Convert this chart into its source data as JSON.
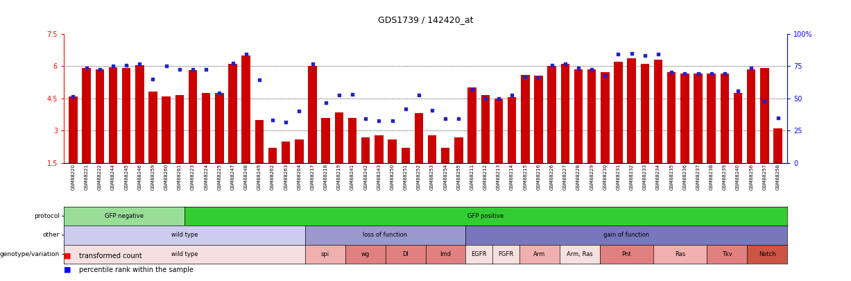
{
  "title": "GDS1739 / 142420_at",
  "samples": [
    "GSM88220",
    "GSM88221",
    "GSM88222",
    "GSM88244",
    "GSM88245",
    "GSM88246",
    "GSM88259",
    "GSM88260",
    "GSM88261",
    "GSM88223",
    "GSM88224",
    "GSM88225",
    "GSM88247",
    "GSM88248",
    "GSM88249",
    "GSM88262",
    "GSM88263",
    "GSM88264",
    "GSM88217",
    "GSM88218",
    "GSM88219",
    "GSM88241",
    "GSM88242",
    "GSM88243",
    "GSM88250",
    "GSM88251",
    "GSM88252",
    "GSM88253",
    "GSM88254",
    "GSM88255",
    "GSM88211",
    "GSM88212",
    "GSM88213",
    "GSM88214",
    "GSM88215",
    "GSM88216",
    "GSM88226",
    "GSM88227",
    "GSM88228",
    "GSM88229",
    "GSM88230",
    "GSM88231",
    "GSM88232",
    "GSM88233",
    "GSM88234",
    "GSM88235",
    "GSM88236",
    "GSM88237",
    "GSM88238",
    "GSM88239",
    "GSM88240",
    "GSM88256",
    "GSM88257",
    "GSM88258"
  ],
  "bar_values": [
    4.6,
    5.9,
    5.85,
    5.95,
    5.9,
    6.05,
    4.8,
    4.6,
    4.65,
    5.8,
    4.75,
    4.75,
    6.1,
    6.5,
    3.5,
    2.2,
    2.5,
    2.6,
    6.0,
    3.6,
    3.85,
    3.6,
    2.7,
    2.8,
    2.6,
    2.2,
    3.8,
    2.8,
    2.2,
    2.7,
    5.0,
    4.65,
    4.5,
    4.55,
    5.6,
    5.55,
    6.0,
    6.1,
    5.85,
    5.85,
    5.7,
    6.2,
    6.35,
    6.1,
    6.3,
    5.7,
    5.65,
    5.65,
    5.65,
    5.65,
    4.75,
    5.85,
    5.9,
    3.1
  ],
  "dot_values": [
    4.6,
    5.9,
    5.85,
    6.0,
    6.05,
    6.1,
    5.4,
    6.0,
    5.85,
    5.85,
    5.85,
    4.75,
    6.15,
    6.55,
    5.35,
    3.5,
    3.4,
    3.9,
    6.1,
    4.3,
    4.65,
    4.7,
    3.55,
    3.45,
    3.45,
    4.0,
    4.65,
    3.95,
    3.55,
    3.55,
    4.9,
    4.5,
    4.5,
    4.65,
    5.5,
    5.45,
    6.05,
    6.1,
    5.9,
    5.85,
    5.55,
    6.55,
    6.6,
    6.5,
    6.55,
    5.7,
    5.65,
    5.65,
    5.65,
    5.65,
    4.85,
    5.9,
    4.35,
    3.6
  ],
  "ylim": [
    1.5,
    7.5
  ],
  "yticks": [
    1.5,
    3.0,
    4.5,
    6.0,
    7.5
  ],
  "ytick_labels": [
    "1.5",
    "3",
    "4.5",
    "6",
    "7.5"
  ],
  "grid_lines": [
    3.0,
    4.5,
    6.0
  ],
  "right_ytick_labels": [
    "0",
    "25",
    "50",
    "75",
    "100%"
  ],
  "right_ytick_vals": [
    0,
    25,
    50,
    75,
    100
  ],
  "bar_color": "#cc0000",
  "dot_color": "#2222cc",
  "protocol_groups": [
    {
      "label": "GFP negative",
      "start": 0,
      "end": 8,
      "color": "#99dd99"
    },
    {
      "label": "GFP positive",
      "start": 9,
      "end": 53,
      "color": "#33cc33"
    }
  ],
  "other_groups": [
    {
      "label": "wild type",
      "start": 0,
      "end": 17,
      "color": "#ccccee"
    },
    {
      "label": "loss of function",
      "start": 18,
      "end": 29,
      "color": "#9999cc"
    },
    {
      "label": "gain of function",
      "start": 30,
      "end": 53,
      "color": "#7777bb"
    }
  ],
  "genotype_groups": [
    {
      "label": "wild type",
      "start": 0,
      "end": 17,
      "color": "#f5e0e0"
    },
    {
      "label": "spi",
      "start": 18,
      "end": 20,
      "color": "#f0b0b0"
    },
    {
      "label": "wg",
      "start": 21,
      "end": 23,
      "color": "#e08080"
    },
    {
      "label": "Dl",
      "start": 24,
      "end": 26,
      "color": "#e08080"
    },
    {
      "label": "Imd",
      "start": 27,
      "end": 29,
      "color": "#e08080"
    },
    {
      "label": "EGFR",
      "start": 30,
      "end": 31,
      "color": "#f5e0e0"
    },
    {
      "label": "FGFR",
      "start": 32,
      "end": 33,
      "color": "#f5e0e0"
    },
    {
      "label": "Arm",
      "start": 34,
      "end": 36,
      "color": "#f0b0b0"
    },
    {
      "label": "Arm, Ras",
      "start": 37,
      "end": 39,
      "color": "#f5e0e0"
    },
    {
      "label": "Pnt",
      "start": 40,
      "end": 43,
      "color": "#e08080"
    },
    {
      "label": "Ras",
      "start": 44,
      "end": 47,
      "color": "#f0b0b0"
    },
    {
      "label": "Tkv",
      "start": 48,
      "end": 50,
      "color": "#e08080"
    },
    {
      "label": "Notch",
      "start": 51,
      "end": 53,
      "color": "#cc5544"
    }
  ]
}
